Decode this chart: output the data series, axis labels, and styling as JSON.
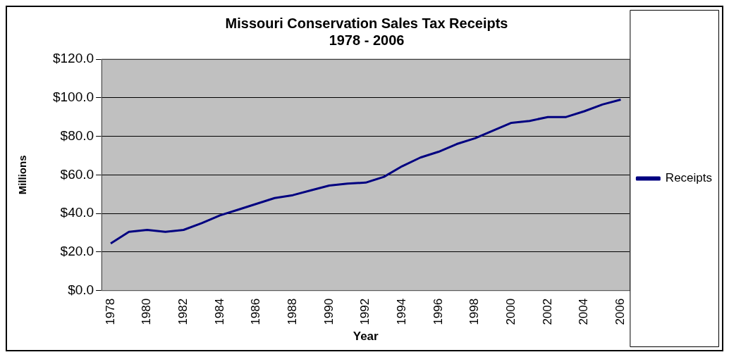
{
  "chart_data": {
    "type": "line",
    "title": "Missouri Conservation Sales Tax Receipts",
    "subtitle": "1978 - 2006",
    "xlabel": "Year",
    "ylabel": "Millions",
    "categories": [
      "1978",
      null,
      "1980",
      null,
      "1982",
      null,
      "1984",
      null,
      "1986",
      null,
      "1988",
      null,
      "1990",
      null,
      "1992",
      null,
      "1994",
      null,
      "1996",
      null,
      "1998",
      null,
      "2000",
      null,
      "2002",
      null,
      "2004",
      null,
      "2006"
    ],
    "series": [
      {
        "name": "Receipts",
        "color": "#000080",
        "values": [
          24.5,
          30.5,
          31.5,
          30.5,
          31.5,
          35,
          39,
          42,
          45,
          48,
          49.5,
          52,
          54.5,
          55.5,
          56,
          59,
          64.5,
          69,
          72,
          76,
          79,
          83,
          87,
          88,
          90,
          90,
          93,
          96.5,
          99
        ]
      }
    ],
    "ylim": [
      0,
      120
    ],
    "yticks": [
      {
        "value": 0,
        "label": "$0.0"
      },
      {
        "value": 20,
        "label": "$20.0"
      },
      {
        "value": 40,
        "label": "$40.0"
      },
      {
        "value": 60,
        "label": "$60.0"
      },
      {
        "value": 80,
        "label": "$80.0"
      },
      {
        "value": 100,
        "label": "$100.0"
      },
      {
        "value": 120,
        "label": "$120.0"
      }
    ],
    "grid": "y",
    "legend": "right",
    "marker": "none",
    "line_style": "solid"
  }
}
